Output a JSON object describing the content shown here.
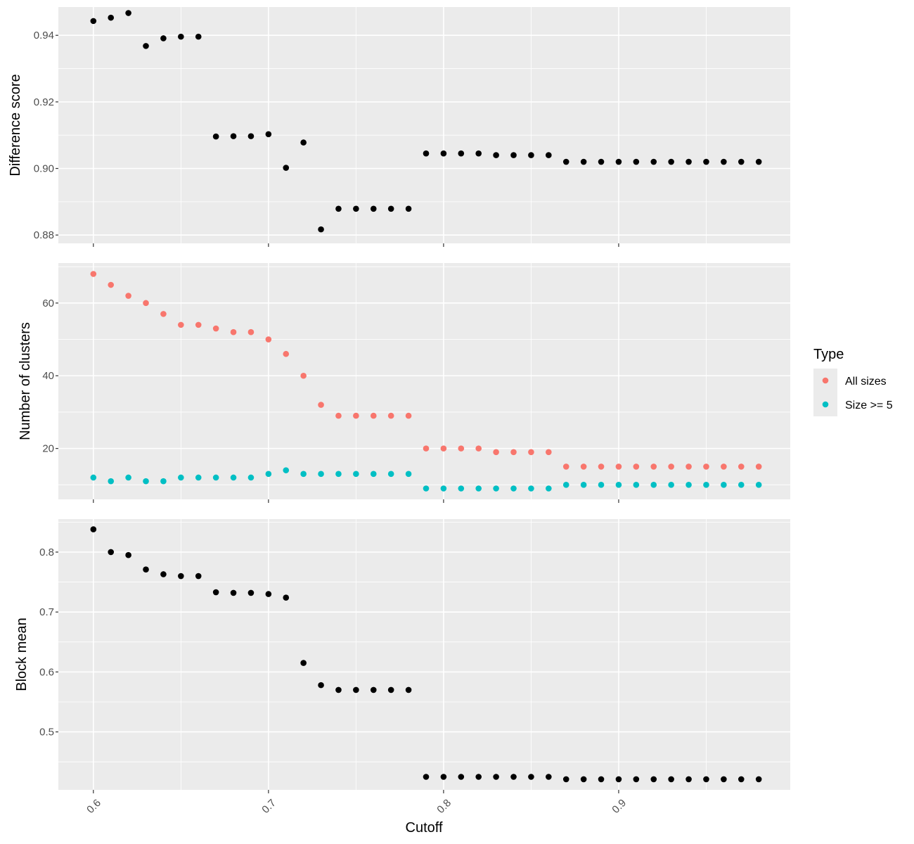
{
  "chart_data": {
    "type": "scatter",
    "xlabel": "Cutoff",
    "xlim": [
      0.58,
      0.998
    ],
    "x_ticks": [
      0.6,
      0.7,
      0.8,
      0.9
    ],
    "x_tick_labels": [
      "0.6",
      "0.7",
      "0.8",
      "0.9"
    ],
    "grid": true,
    "legend": {
      "title": "Type",
      "placement": "right",
      "entries": [
        {
          "name": "All sizes",
          "color": "#F8766D"
        },
        {
          "name": "Size >= 5",
          "color": "#00BFC4"
        }
      ]
    },
    "x": [
      0.6,
      0.61,
      0.62,
      0.63,
      0.64,
      0.65,
      0.66,
      0.67,
      0.68,
      0.69,
      0.7,
      0.71,
      0.72,
      0.73,
      0.74,
      0.75,
      0.76,
      0.77,
      0.78,
      0.79,
      0.8,
      0.81,
      0.82,
      0.83,
      0.84,
      0.85,
      0.86,
      0.87,
      0.88,
      0.89,
      0.9,
      0.91,
      0.92,
      0.93,
      0.94,
      0.95,
      0.96,
      0.97,
      0.98
    ],
    "panels": [
      {
        "ylabel": "Difference score",
        "ylim": [
          0.8775,
          0.9485
        ],
        "y_ticks": [
          0.88,
          0.9,
          0.92,
          0.94
        ],
        "y_tick_labels": [
          "0.88",
          "0.90",
          "0.92",
          "0.94"
        ],
        "series": [
          {
            "color": "#000000",
            "values": [
              0.9443,
              0.9453,
              0.9467,
              0.9368,
              0.9391,
              0.9396,
              0.9396,
              0.9096,
              0.9097,
              0.9097,
              0.9103,
              0.9002,
              0.9078,
              0.8817,
              0.8879,
              0.8879,
              0.8879,
              0.8879,
              0.8879,
              0.9045,
              0.9045,
              0.9045,
              0.9045,
              0.904,
              0.904,
              0.904,
              0.904,
              0.902,
              0.902,
              0.902,
              0.902,
              0.902,
              0.902,
              0.902,
              0.902,
              0.902,
              0.902,
              0.902,
              0.902
            ]
          }
        ]
      },
      {
        "ylabel": "Number of clusters",
        "ylim": [
          6,
          71
        ],
        "y_ticks": [
          20,
          40,
          60
        ],
        "y_tick_labels": [
          "20",
          "40",
          "60"
        ],
        "series": [
          {
            "name": "All sizes",
            "color": "#F8766D",
            "values": [
              68,
              65,
              62,
              60,
              57,
              54,
              54,
              53,
              52,
              52,
              50,
              46,
              40,
              32,
              29,
              29,
              29,
              29,
              29,
              20,
              20,
              20,
              20,
              19,
              19,
              19,
              19,
              15,
              15,
              15,
              15,
              15,
              15,
              15,
              15,
              15,
              15,
              15,
              15
            ]
          },
          {
            "name": "Size >= 5",
            "color": "#00BFC4",
            "values": [
              12,
              11,
              12,
              11,
              11,
              12,
              12,
              12,
              12,
              12,
              13,
              14,
              13,
              13,
              13,
              13,
              13,
              13,
              13,
              9,
              9,
              9,
              9,
              9,
              9,
              9,
              9,
              10,
              10,
              10,
              10,
              10,
              10,
              10,
              10,
              10,
              10,
              10,
              10
            ]
          }
        ]
      },
      {
        "ylabel": "Block mean",
        "ylim": [
          0.4033,
          0.8551
        ],
        "y_ticks": [
          0.5,
          0.6,
          0.7,
          0.8
        ],
        "y_tick_labels": [
          "0.5",
          "0.6",
          "0.7",
          "0.8"
        ],
        "series": [
          {
            "color": "#000000",
            "values": [
              0.838,
              0.8,
              0.795,
              0.771,
              0.763,
              0.76,
              0.76,
              0.733,
              0.732,
              0.732,
              0.73,
              0.724,
              0.615,
              0.578,
              0.57,
              0.57,
              0.57,
              0.57,
              0.57,
              0.425,
              0.425,
              0.425,
              0.425,
              0.425,
              0.425,
              0.425,
              0.425,
              0.421,
              0.421,
              0.421,
              0.421,
              0.421,
              0.421,
              0.421,
              0.421,
              0.421,
              0.421,
              0.421,
              0.421
            ]
          }
        ]
      }
    ]
  }
}
